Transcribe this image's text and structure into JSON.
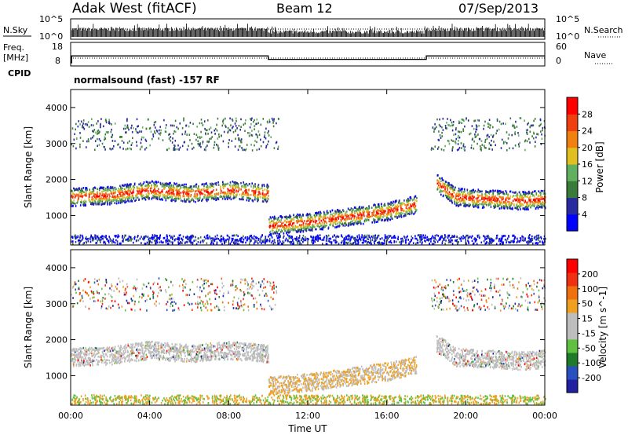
{
  "header": {
    "station": "Adak West (fitACF)",
    "beam": "Beam 12",
    "date": "07/Sep/2013"
  },
  "panels": {
    "noise": {
      "left_label": "N.Sky",
      "right_label": "N.Search",
      "top_tick": "10^5",
      "bottom_tick": "10^0"
    },
    "freq": {
      "left_label_1": "Freq.",
      "left_label_2": "[MHz]",
      "left_ticks": [
        "18",
        "8"
      ],
      "right_ticks": [
        "60",
        "0"
      ],
      "right_label": "Nave",
      "values_mhz": [
        {
          "from_h": 0,
          "to_h": 0.05,
          "freq_mhz": 8
        },
        {
          "from_h": 0.05,
          "to_h": 10.0,
          "freq_mhz": 12
        },
        {
          "from_h": 10.0,
          "to_h": 18.0,
          "freq_mhz": 10
        },
        {
          "from_h": 18.0,
          "to_h": 24.0,
          "freq_mhz": 12
        }
      ]
    },
    "cpid": {
      "label": "CPID",
      "text": "normalsound (fast) -157 RF"
    }
  },
  "colors": {
    "power_scale": [
      "#0000ff",
      "#2a2aa0",
      "#3a7a3a",
      "#60b060",
      "#e0c020",
      "#f08010",
      "#f04010",
      "#ff0000"
    ],
    "velocity_scale": [
      "#2020a0",
      "#2a4fc0",
      "#1f7a2a",
      "#60c040",
      "#bdbdbd",
      "#bdbdbd",
      "#f0a020",
      "#f07010",
      "#f03010",
      "#ff0000"
    ]
  },
  "chart_data": [
    {
      "type": "heatmap",
      "title": "Power",
      "xlabel": "",
      "ylabel": "Slant Range [km]",
      "x_ticks": [
        "00:00",
        "04:00",
        "08:00",
        "12:00",
        "16:00",
        "20:00",
        "00:00"
      ],
      "xlim_hours": [
        0,
        24
      ],
      "y_ticks": [
        "1000",
        "2000",
        "3000",
        "4000"
      ],
      "ylim_km": [
        180,
        4500
      ],
      "colorbar": {
        "label": "Power [dB]",
        "ticks": [
          "4",
          "8",
          "12",
          "16",
          "20",
          "24",
          "28"
        ],
        "range": [
          0,
          32
        ]
      },
      "bands": [
        {
          "name": "main echo",
          "points": [
            [
              0,
              1500
            ],
            [
              2,
              1550
            ],
            [
              4,
              1700
            ],
            [
              6,
              1600
            ],
            [
              8,
              1700
            ],
            [
              10,
              1600
            ]
          ]
        },
        {
          "name": "near band",
          "points": [
            [
              10,
              700
            ],
            [
              12,
              800
            ],
            [
              14,
              950
            ],
            [
              16,
              1100
            ],
            [
              17.5,
              1300
            ]
          ]
        },
        {
          "name": "evening echo",
          "points": [
            [
              18.5,
              1900
            ],
            [
              19.5,
              1500
            ],
            [
              21,
              1450
            ],
            [
              23,
              1400
            ],
            [
              24,
              1450
            ]
          ]
        }
      ]
    },
    {
      "type": "heatmap",
      "title": "Velocity",
      "xlabel": "Time UT",
      "ylabel": "Slant Range [km]",
      "x_ticks": [
        "00:00",
        "04:00",
        "08:00",
        "12:00",
        "16:00",
        "20:00",
        "00:00"
      ],
      "xlim_hours": [
        0,
        24
      ],
      "y_ticks": [
        "1000",
        "2000",
        "3000",
        "4000"
      ],
      "ylim_km": [
        180,
        4500
      ],
      "colorbar": {
        "label": "Velocity [m s^-1]",
        "ticks": [
          "200",
          "100",
          "50",
          "15",
          "-15",
          "-50",
          "-100",
          "-200"
        ],
        "range": [
          -250,
          250
        ]
      }
    }
  ]
}
